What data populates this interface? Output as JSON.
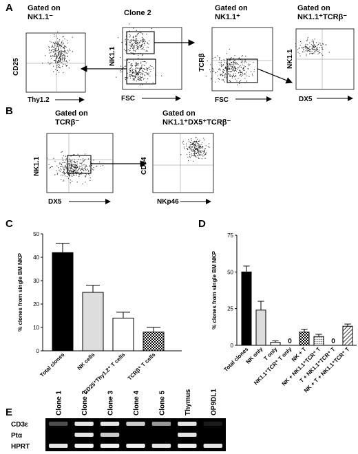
{
  "panels": {
    "A": {
      "label": "A",
      "plots": [
        {
          "gate_title_lines": [
            "Gated on",
            "NK1.1⁻"
          ],
          "xlabel": "Thy1.2",
          "ylabel": "CD25"
        },
        {
          "gate_title_lines": [
            "Clone 2"
          ],
          "xlabel": "FSC",
          "ylabel": "NK1.1"
        },
        {
          "gate_title_lines": [
            "Gated on",
            "NK1.1⁺"
          ],
          "xlabel": "FSC",
          "ylabel": "TCRβ"
        },
        {
          "gate_title_lines": [
            "Gated on",
            "NK1.1⁺TCRβ⁻"
          ],
          "xlabel": "DX5",
          "ylabel": "NK1.1"
        }
      ]
    },
    "B": {
      "label": "B",
      "plots": [
        {
          "gate_title_lines": [
            "Gated on",
            "TCRβ⁻"
          ],
          "xlabel": "DX5",
          "ylabel": "NK1.1"
        },
        {
          "gate_title_lines": [
            "Gated on",
            "NK1.1⁺DX5⁺TCRβ⁻"
          ],
          "xlabel": "NKp46",
          "ylabel": "CD94"
        }
      ]
    },
    "E": {
      "label": "E",
      "lanes": [
        "Clone  1",
        "Clone  2",
        "Clone  3",
        "Clone  4",
        "Clone  5",
        "Thymus",
        "OP9DL1"
      ],
      "bands": [
        "CD3ε",
        "Ptα",
        "HPRT"
      ]
    }
  },
  "chart_data": [
    {
      "panel": "C",
      "label": "C",
      "type": "bar",
      "ylabel": "% clones from single BM NKP",
      "ylim": [
        0,
        50
      ],
      "yticks": [
        0,
        10,
        20,
        30,
        40,
        50
      ],
      "categories": [
        "Total clones",
        "NK cells",
        "CD25⁺Thy1.2⁺ T cells",
        "TCRβ⁺ T cells"
      ],
      "values": [
        42,
        25,
        14,
        8
      ],
      "errors": [
        4,
        3,
        2.5,
        2
      ],
      "fills": [
        "#000000",
        "#dddddd",
        "#ffffff",
        "checker"
      ]
    },
    {
      "panel": "D",
      "label": "D",
      "type": "bar",
      "ylabel": "% clones from single BM NKP",
      "ylim": [
        0,
        75
      ],
      "yticks": [
        0,
        25,
        50,
        75
      ],
      "categories": [
        "Total clones",
        "NK only",
        "T only",
        "NK1.1⁺TCR⁺ T only",
        "NK + T",
        "NK + NK1.1⁺TCR⁺ T",
        "T + NK1.1⁺TCR⁺ T",
        "NK + T + NK1.1⁺TCR⁺ T"
      ],
      "values": [
        50,
        24,
        2,
        0,
        9,
        6,
        0,
        13
      ],
      "errors": [
        4,
        6,
        1,
        0,
        2,
        1.5,
        0,
        1.5
      ],
      "zero_labels": [
        "",
        "",
        "",
        "0",
        "",
        "",
        "0",
        ""
      ],
      "fills": [
        "#000000",
        "#dddddd",
        "#ffffff",
        "#ffffff",
        "checker",
        "dots",
        "#ffffff",
        "hatch"
      ]
    }
  ]
}
